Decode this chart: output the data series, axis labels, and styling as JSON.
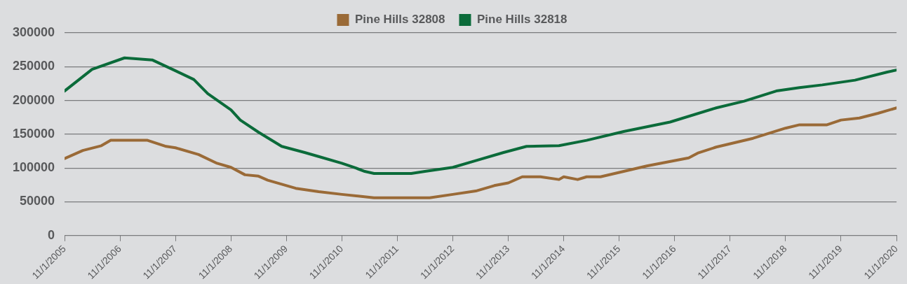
{
  "chart_data": {
    "type": "line",
    "legend": "top",
    "grid": "y",
    "marker": "none",
    "line_style": "solid",
    "xlim": [
      "2005-11-01",
      "2020-11-01"
    ],
    "xticks": [
      {
        "value": "2005-11-01",
        "label": "11/1/2005"
      },
      {
        "value": "2006-11-01",
        "label": "11/1/2006"
      },
      {
        "value": "2007-11-01",
        "label": "11/1/2007"
      },
      {
        "value": "2008-11-01",
        "label": "11/1/2008"
      },
      {
        "value": "2009-11-01",
        "label": "11/1/2009"
      },
      {
        "value": "2010-11-01",
        "label": "11/1/2010"
      },
      {
        "value": "2011-11-01",
        "label": "11/1/2011"
      },
      {
        "value": "2012-11-01",
        "label": "11/1/2012"
      },
      {
        "value": "2013-11-01",
        "label": "11/1/2013"
      },
      {
        "value": "2014-11-01",
        "label": "11/1/2014"
      },
      {
        "value": "2015-11-01",
        "label": "11/1/2015"
      },
      {
        "value": "2016-11-01",
        "label": "11/1/2016"
      },
      {
        "value": "2017-11-01",
        "label": "11/1/2017"
      },
      {
        "value": "2018-11-01",
        "label": "11/1/2018"
      },
      {
        "value": "2019-11-01",
        "label": "11/1/2019"
      },
      {
        "value": "2020-11-01",
        "label": "11/1/2020"
      }
    ],
    "ylim": [
      0,
      300000
    ],
    "yticks": [
      0,
      50000,
      100000,
      150000,
      200000,
      250000,
      300000
    ],
    "series": [
      {
        "name": "Pine Hills 32808",
        "color": "#9a6a37",
        "x": [
          "2005-11",
          "2006-03",
          "2006-07",
          "2006-09",
          "2007-05",
          "2007-09",
          "2007-11",
          "2008-04",
          "2008-08",
          "2008-11",
          "2009-02",
          "2009-05",
          "2009-07",
          "2009-10",
          "2010-01",
          "2010-06",
          "2010-11",
          "2011-06",
          "2012-06",
          "2012-11",
          "2013-04",
          "2013-08",
          "2013-11",
          "2014-02",
          "2014-06",
          "2014-10",
          "2014-11",
          "2015-02",
          "2015-04",
          "2015-07",
          "2015-12",
          "2016-05",
          "2017-02",
          "2017-04",
          "2017-08",
          "2018-04",
          "2018-11",
          "2019-02",
          "2019-08",
          "2019-11",
          "2020-03",
          "2020-07",
          "2020-11"
        ],
        "values": [
          114000,
          126000,
          133000,
          141000,
          141000,
          132000,
          130000,
          120000,
          107000,
          101000,
          90000,
          88000,
          82000,
          76000,
          70000,
          65000,
          61000,
          56000,
          56000,
          61000,
          66000,
          74000,
          78000,
          87000,
          87000,
          83000,
          87000,
          83000,
          87000,
          87000,
          95000,
          103000,
          115000,
          122000,
          131000,
          144000,
          159000,
          164000,
          164000,
          171000,
          174000,
          181000,
          189000
        ]
      },
      {
        "name": "Pine Hills 32818",
        "color": "#0b6b3a",
        "x": [
          "2005-11",
          "2006-05",
          "2006-12",
          "2007-06",
          "2007-11",
          "2008-03",
          "2008-06",
          "2008-11",
          "2009-01",
          "2009-05",
          "2009-10",
          "2010-03",
          "2010-06",
          "2010-11",
          "2011-02",
          "2011-04",
          "2011-06",
          "2012-02",
          "2012-05",
          "2012-11",
          "2013-04",
          "2013-10",
          "2014-03",
          "2014-10",
          "2015-04",
          "2015-12",
          "2016-10",
          "2017-08",
          "2018-02",
          "2018-09",
          "2019-02",
          "2019-07",
          "2020-02",
          "2020-09",
          "2020-11"
        ],
        "values": [
          214000,
          246000,
          263000,
          260000,
          244000,
          231000,
          210000,
          186000,
          171000,
          153000,
          132000,
          123000,
          117000,
          107000,
          100000,
          95000,
          92000,
          92000,
          95000,
          101000,
          111000,
          123000,
          132000,
          133000,
          141000,
          154000,
          168000,
          189000,
          199000,
          214000,
          219000,
          223000,
          230000,
          242000,
          245000
        ]
      }
    ]
  }
}
